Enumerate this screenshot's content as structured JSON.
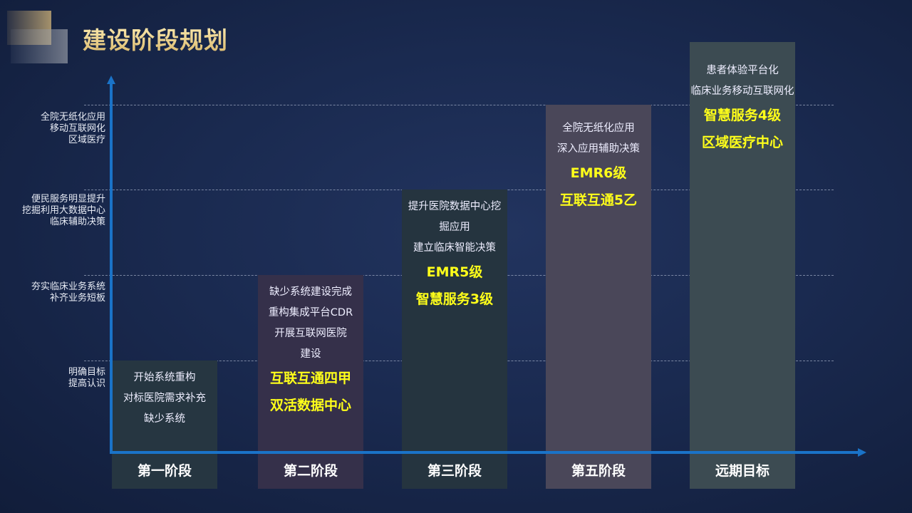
{
  "title": "建设阶段规划",
  "y_levels": [
    {
      "lines": [
        "全院无纸化应用",
        "移动互联网化",
        "区域医疗"
      ]
    },
    {
      "lines": [
        "便民服务明显提升",
        "挖掘利用大数据中心",
        "临床辅助决策"
      ]
    },
    {
      "lines": [
        "夯实临床业务系统",
        "补齐业务短板"
      ]
    },
    {
      "lines": [
        "明确目标",
        "提高认识"
      ]
    }
  ],
  "stages": [
    {
      "label": "第一阶段",
      "color": "#263641",
      "items": [
        "开始系统重构",
        "对标医院需求补充",
        "缺少系统"
      ],
      "highlights": []
    },
    {
      "label": "第二阶段",
      "color": "#35304a",
      "items": [
        "缺少系统建设完成",
        "重构集成平台CDR",
        "开展互联网医院",
        "建设"
      ],
      "highlights": [
        "互联互通四甲",
        "双活数据中心"
      ]
    },
    {
      "label": "第三阶段",
      "color": "#25343f",
      "items": [
        "提升医院数据中心挖",
        "掘应用",
        "建立临床智能决策"
      ],
      "highlights": [
        "EMR5级",
        "智慧服务3级"
      ]
    },
    {
      "label": "第五阶段",
      "color": "#4a4759",
      "items": [
        "全院无纸化应用",
        "深入应用辅助决策"
      ],
      "highlights": [
        "EMR6级",
        "互联互通5乙"
      ]
    },
    {
      "label": "远期目标",
      "color": "#3c4b52",
      "items": [
        "患者体验平台化",
        "临床业务移动互联网化"
      ],
      "highlights": [
        "智慧服务4级",
        "区域医疗中心"
      ]
    }
  ],
  "colors": {
    "axis": "#1a73c8",
    "highlight": "#ffff1a",
    "title_gold": "#e8cf8a"
  }
}
